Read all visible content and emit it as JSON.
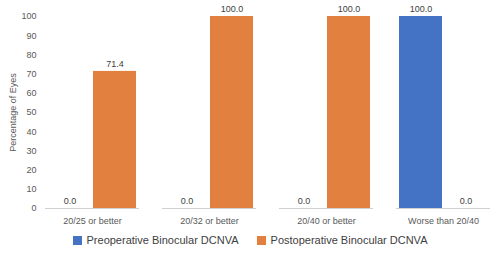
{
  "chart_data": {
    "type": "bar",
    "categories": [
      "20/25 or better",
      "20/32 or better",
      "20/40 or better",
      "Worse than 20/40"
    ],
    "series": [
      {
        "name": "Preoperative Binocular DCNVA",
        "color": "#4472c4",
        "values": [
          0,
          0,
          0,
          100
        ],
        "value_labels": [
          "0.0",
          "0.0",
          "0.0",
          "100.0"
        ]
      },
      {
        "name": "Postoperative Binocular DCNVA",
        "color": "#e2803f",
        "values": [
          71.4,
          100,
          100,
          0
        ],
        "value_labels": [
          "71.4",
          "100.0",
          "100.0",
          "0.0"
        ]
      }
    ],
    "ylabel": "Percentage of Eyes",
    "ylim": [
      0,
      100
    ],
    "yticks": [
      0,
      10,
      20,
      30,
      40,
      50,
      60,
      70,
      80,
      90,
      100
    ],
    "grid": false,
    "data_labels": true,
    "legend": "bottom"
  }
}
